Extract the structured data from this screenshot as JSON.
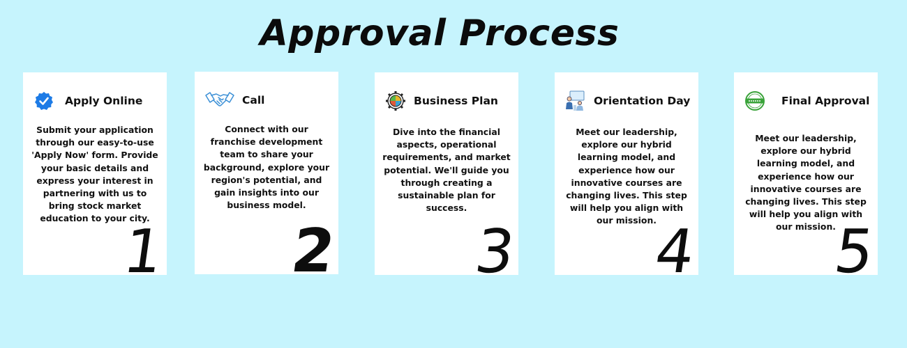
{
  "title": "Approval Process",
  "colors": {
    "background": "#c6f4fd",
    "card": "#ffffff",
    "check_blue": "#1d7be6",
    "approved_green": "#3aa33a"
  },
  "steps": [
    {
      "number": "1",
      "icon": "check-badge-icon",
      "title": "Apply Online",
      "body": "Submit your application through our easy-to-use 'Apply Now' form. Provide your basic details and express your interest in partnering with us to bring stock market education to your city."
    },
    {
      "number": "2",
      "icon": "handshake-icon",
      "title": "Call",
      "body": "Connect with our franchise development team to share your background, explore your region's potential, and gain insights into our business model."
    },
    {
      "number": "3",
      "icon": "gear-puzzle-icon",
      "title": "Business Plan",
      "body": "Dive into the financial aspects, operational requirements, and market potential. We'll guide you through creating a sustainable plan for success."
    },
    {
      "number": "4",
      "icon": "orientation-people-icon",
      "title": "Orientation Day",
      "body": "Meet our leadership, explore our hybrid learning model, and experience how our innovative courses are changing lives. This step will help you align with our mission."
    },
    {
      "number": "5",
      "icon": "approved-stamp-icon",
      "title": "Final Approval",
      "body": "Meet our leadership, explore our hybrid learning model, and experience how our innovative courses are changing lives. This step will help you align with our mission."
    }
  ]
}
